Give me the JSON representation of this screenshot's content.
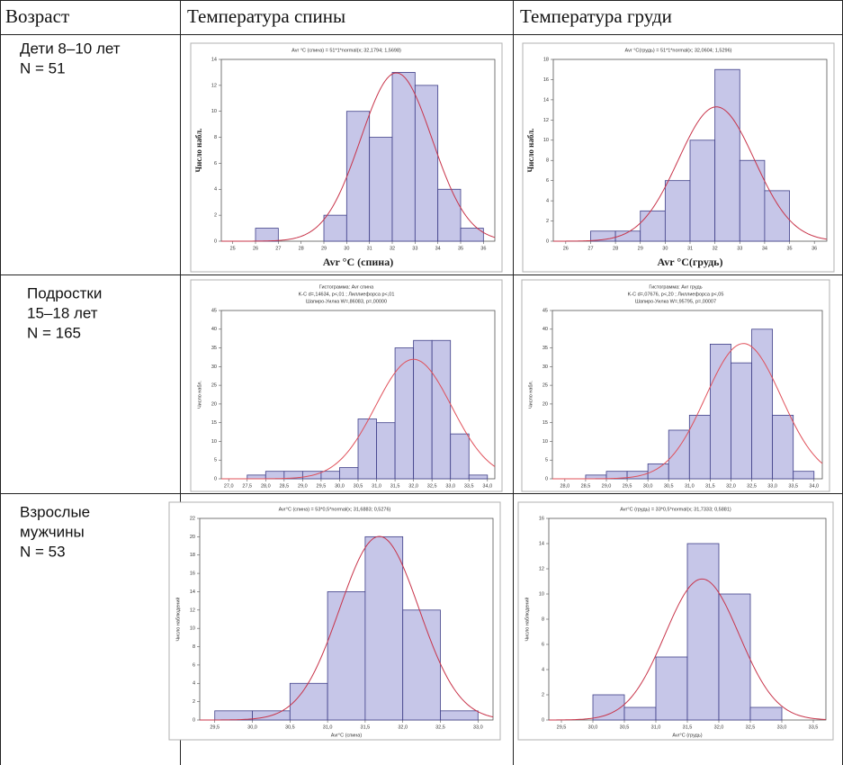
{
  "table": {
    "header": [
      "Возраст",
      "Температура спины",
      "Температура груди"
    ],
    "rows": [
      {
        "group": [
          "Дети 8–10 лет",
          "N = 51"
        ],
        "charts": [
          {
            "type": "histogram",
            "title": [
              "Avr °C (спина) = 51*1*normal(x; 32,1794; 1,5698)"
            ],
            "xlabel": "Avr °C (спина)",
            "ylabel": "Число набл.",
            "bins": [
              25,
              26,
              27,
              28,
              29,
              30,
              31,
              32,
              33,
              34,
              35,
              36
            ],
            "counts": [
              0,
              1,
              0,
              0,
              2,
              10,
              8,
              13,
              12,
              4,
              1
            ],
            "xlim": [
              24.5,
              36.5
            ],
            "xticks": [
              25,
              26,
              27,
              28,
              29,
              30,
              31,
              32,
              33,
              34,
              35,
              36
            ],
            "ylim": [
              0,
              14
            ],
            "yticks": [
              0,
              2,
              4,
              6,
              8,
              10,
              12,
              14
            ],
            "color": "#c6c6e8",
            "curve": {
              "n": 51,
              "width": 1,
              "mean": 32.1794,
              "sd": 1.5698
            },
            "curve_color": "#c8344a"
          },
          {
            "type": "histogram",
            "title": [
              "Avr °C(грудь) = 51*1*normal(x; 32,0604; 1,5296)"
            ],
            "xlabel": "Avr °C(грудь)",
            "ylabel": "Число набл.",
            "bins": [
              26,
              27,
              28,
              29,
              30,
              31,
              32,
              33,
              34,
              35
            ],
            "counts": [
              0,
              1,
              1,
              3,
              6,
              10,
              17,
              8,
              5
            ],
            "xlim": [
              25.5,
              36.5
            ],
            "xticks": [
              26,
              27,
              28,
              29,
              30,
              31,
              32,
              33,
              34,
              35,
              36
            ],
            "ylim": [
              0,
              18
            ],
            "yticks": [
              0,
              2,
              4,
              6,
              8,
              10,
              12,
              14,
              16,
              18
            ],
            "color": "#c6c6e8",
            "curve": {
              "n": 51,
              "width": 1,
              "mean": 32.0604,
              "sd": 1.5296
            },
            "curve_color": "#c8344a"
          }
        ]
      },
      {
        "group": [
          "Подростки",
          "15–18 лет",
          "N = 165"
        ],
        "charts": [
          {
            "type": "histogram",
            "title": [
              "Гистограмма: Avr спина",
              "K-C d=,14634, p<,01 ; Лиллиефорса p<,01",
              "Шапиро-Уилка W=,86083, p=,00000"
            ],
            "ylabel": "Число набл.",
            "bins": [
              27.0,
              27.5,
              28.0,
              28.5,
              29.0,
              29.5,
              30.0,
              30.5,
              31.0,
              31.5,
              32.0,
              32.5,
              33.0,
              33.5,
              34.0
            ],
            "counts": [
              0,
              1,
              2,
              2,
              2,
              2,
              3,
              16,
              15,
              35,
              37,
              37,
              12,
              1
            ],
            "xlim": [
              26.8,
              34.2
            ],
            "xticks": [
              {
                "value": 27.0,
                "label": "27,0"
              },
              {
                "value": 27.5,
                "label": "27,5"
              },
              {
                "value": 28.0,
                "label": "28,0"
              },
              {
                "value": 28.5,
                "label": "28,5"
              },
              {
                "value": 29.0,
                "label": "29,0"
              },
              {
                "value": 29.5,
                "label": "29,5"
              },
              {
                "value": 30.0,
                "label": "30,0"
              },
              {
                "value": 30.5,
                "label": "30,5"
              },
              {
                "value": 31.0,
                "label": "31,0"
              },
              {
                "value": 31.5,
                "label": "31,5"
              },
              {
                "value": 32.0,
                "label": "32,0"
              },
              {
                "value": 32.5,
                "label": "32,5"
              },
              {
                "value": 33.0,
                "label": "33,0"
              },
              {
                "value": 33.5,
                "label": "33,5"
              },
              {
                "value": 34.0,
                "label": "34,0"
              }
            ],
            "ylim": [
              0,
              45
            ],
            "yticks": [
              0,
              5,
              10,
              15,
              20,
              25,
              30,
              35,
              40,
              45
            ],
            "color": "#c6c6e8",
            "curve": {
              "n": 165,
              "width": 0.5,
              "mean": 32.0,
              "sd": 1.03
            },
            "curve_color": "#e0505a"
          },
          {
            "type": "histogram",
            "title": [
              "Гистограмма: Avr грудь",
              "K-C d=,07676, p<,20 ; Лиллиефорса p<,05",
              "Шапиро-Уилка W=,95795, p=,00007"
            ],
            "ylabel": "Число набл.",
            "bins": [
              28.0,
              28.5,
              29.0,
              29.5,
              30.0,
              30.5,
              31.0,
              31.5,
              32.0,
              32.5,
              33.0,
              33.5,
              34.0
            ],
            "counts": [
              0,
              1,
              2,
              2,
              4,
              13,
              17,
              36,
              31,
              40,
              17,
              2
            ],
            "xlim": [
              27.7,
              34.2
            ],
            "xticks": [
              {
                "value": 28.0,
                "label": "28,0"
              },
              {
                "value": 28.5,
                "label": "28,5"
              },
              {
                "value": 29.0,
                "label": "29,0"
              },
              {
                "value": 29.5,
                "label": "29,5"
              },
              {
                "value": 30.0,
                "label": "30,0"
              },
              {
                "value": 30.5,
                "label": "30,5"
              },
              {
                "value": 31.0,
                "label": "31,0"
              },
              {
                "value": 31.5,
                "label": "31,5"
              },
              {
                "value": 32.0,
                "label": "32,0"
              },
              {
                "value": 32.5,
                "label": "32,5"
              },
              {
                "value": 33.0,
                "label": "33,0"
              },
              {
                "value": 33.5,
                "label": "33,5"
              },
              {
                "value": 34.0,
                "label": "34,0"
              }
            ],
            "ylim": [
              0,
              45
            ],
            "yticks": [
              0,
              5,
              10,
              15,
              20,
              25,
              30,
              35,
              40,
              45
            ],
            "color": "#c6c6e8",
            "curve": {
              "n": 165,
              "width": 0.5,
              "mean": 32.3,
              "sd": 0.91
            },
            "curve_color": "#e0505a"
          }
        ]
      },
      {
        "group": [
          "Взрослые",
          "мужчины",
          "N = 53"
        ],
        "charts": [
          {
            "type": "histogram",
            "title": [
              "Avr°C (спина) = 53*0,5*normal(x; 31,6883; 0,5276)"
            ],
            "xlabel": "Avr°C (спина)",
            "ylabel": "Число наблюдений",
            "bins": [
              29.5,
              30.0,
              30.5,
              31.0,
              31.5,
              32.0,
              32.5,
              33.0
            ],
            "counts": [
              1,
              1,
              4,
              14,
              20,
              12,
              1
            ],
            "xlim": [
              29.3,
              33.2
            ],
            "xticks": [
              {
                "value": 29.5,
                "label": "29,5"
              },
              {
                "value": 30.0,
                "label": "30,0"
              },
              {
                "value": 30.5,
                "label": "30,5"
              },
              {
                "value": 31.0,
                "label": "31,0"
              },
              {
                "value": 31.5,
                "label": "31,5"
              },
              {
                "value": 32.0,
                "label": "32,0"
              },
              {
                "value": 32.5,
                "label": "32,5"
              },
              {
                "value": 33.0,
                "label": "33,0"
              }
            ],
            "ylim": [
              0,
              22
            ],
            "yticks": [
              0,
              2,
              4,
              6,
              8,
              10,
              12,
              14,
              16,
              18,
              20,
              22
            ],
            "color": "#c6c6e8",
            "curve": {
              "n": 53,
              "width": 0.5,
              "mean": 31.6883,
              "sd": 0.5276
            },
            "curve_color": "#c8344a"
          },
          {
            "type": "histogram",
            "title": [
              "Avr°C (грудь) = 33*0,5*normal(x; 31,7333; 0,5881)"
            ],
            "xlabel": "Avr°C (грудь)",
            "ylabel": "Число наблюдений",
            "bins": [
              29.5,
              30.0,
              30.5,
              31.0,
              31.5,
              32.0,
              32.5,
              33.0,
              33.5
            ],
            "counts": [
              0,
              2,
              1,
              5,
              14,
              10,
              1,
              0
            ],
            "xlim": [
              29.3,
              33.7
            ],
            "xticks": [
              {
                "value": 29.5,
                "label": "29,5"
              },
              {
                "value": 30.0,
                "label": "30,0"
              },
              {
                "value": 30.5,
                "label": "30,5"
              },
              {
                "value": 31.0,
                "label": "31,0"
              },
              {
                "value": 31.5,
                "label": "31,5"
              },
              {
                "value": 32.0,
                "label": "32,0"
              },
              {
                "value": 32.5,
                "label": "32,5"
              },
              {
                "value": 33.0,
                "label": "33,0"
              },
              {
                "value": 33.5,
                "label": "33,5"
              }
            ],
            "ylim": [
              0,
              16
            ],
            "yticks": [
              0,
              2,
              4,
              6,
              8,
              10,
              12,
              14,
              16
            ],
            "color": "#c6c6e8",
            "curve": {
              "n": 33,
              "width": 0.5,
              "mean": 31.7333,
              "sd": 0.5881
            },
            "curve_color": "#c8344a"
          }
        ]
      }
    ]
  }
}
